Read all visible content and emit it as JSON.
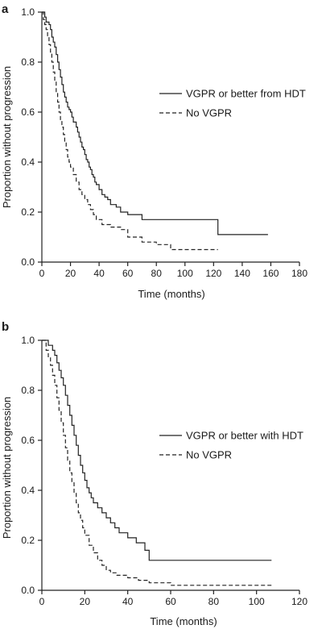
{
  "chart_data": [
    {
      "type": "line",
      "panel_label": "a",
      "xlabel": "Time (months)",
      "ylabel": "Proportion without progression",
      "xlim": [
        0,
        180
      ],
      "ylim": [
        0,
        1.0
      ],
      "xticks": [
        "0",
        "20",
        "40",
        "60",
        "80",
        "100",
        "120",
        "140",
        "160",
        "180"
      ],
      "yticks": [
        "0.0",
        "0.2",
        "0.4",
        "0.6",
        "0.8",
        "1.0"
      ],
      "legend_position": "center-right",
      "series": [
        {
          "name": "VGPR or better from HDT",
          "dash": "solid",
          "x": [
            0,
            2,
            3,
            5,
            6,
            7,
            8,
            9,
            10,
            11,
            12,
            13,
            14,
            15,
            16,
            17,
            18,
            19,
            20,
            21,
            22,
            24,
            25,
            26,
            27,
            28,
            29,
            30,
            31,
            32,
            33,
            34,
            35,
            36,
            37,
            38,
            40,
            42,
            44,
            46,
            48,
            52,
            55,
            60,
            70,
            123,
            158
          ],
          "y": [
            1.0,
            0.98,
            0.96,
            0.95,
            0.93,
            0.9,
            0.88,
            0.86,
            0.83,
            0.8,
            0.77,
            0.74,
            0.71,
            0.68,
            0.66,
            0.64,
            0.62,
            0.61,
            0.6,
            0.58,
            0.56,
            0.54,
            0.52,
            0.5,
            0.48,
            0.46,
            0.45,
            0.43,
            0.41,
            0.4,
            0.38,
            0.37,
            0.35,
            0.34,
            0.32,
            0.31,
            0.29,
            0.27,
            0.26,
            0.25,
            0.23,
            0.22,
            0.2,
            0.19,
            0.17,
            0.11,
            0.11
          ]
        },
        {
          "name": "No VGPR",
          "dash": "dashed",
          "x": [
            0,
            1,
            2,
            3,
            4,
            5,
            6,
            7,
            8,
            9,
            10,
            11,
            12,
            13,
            14,
            15,
            16,
            17,
            18,
            19,
            20,
            22,
            24,
            26,
            28,
            30,
            32,
            34,
            36,
            38,
            42,
            48,
            55,
            60,
            70,
            80,
            90,
            123
          ],
          "y": [
            1.0,
            0.97,
            0.95,
            0.93,
            0.9,
            0.87,
            0.84,
            0.8,
            0.76,
            0.72,
            0.68,
            0.64,
            0.6,
            0.57,
            0.54,
            0.51,
            0.48,
            0.45,
            0.42,
            0.4,
            0.38,
            0.35,
            0.32,
            0.29,
            0.27,
            0.25,
            0.23,
            0.21,
            0.19,
            0.17,
            0.15,
            0.14,
            0.13,
            0.1,
            0.08,
            0.07,
            0.05,
            0.05
          ]
        }
      ]
    },
    {
      "type": "line",
      "panel_label": "b",
      "xlabel": "Time (months)",
      "ylabel": "Proportion without progression",
      "xlim": [
        0,
        120
      ],
      "ylim": [
        0,
        1.0
      ],
      "xticks": [
        "0",
        "20",
        "40",
        "60",
        "80",
        "100",
        "120"
      ],
      "yticks": [
        "0.0",
        "0.2",
        "0.4",
        "0.6",
        "0.8",
        "1.0"
      ],
      "legend_position": "center-right",
      "series": [
        {
          "name": "VGPR or better with HDT",
          "dash": "solid",
          "x": [
            0,
            3,
            5,
            6,
            7,
            8,
            9,
            10,
            11,
            12,
            13,
            14,
            15,
            16,
            17,
            18,
            19,
            20,
            21,
            22,
            23,
            24,
            26,
            28,
            30,
            32,
            34,
            36,
            40,
            44,
            48,
            50,
            107
          ],
          "y": [
            1.0,
            0.98,
            0.96,
            0.94,
            0.91,
            0.88,
            0.85,
            0.82,
            0.78,
            0.74,
            0.7,
            0.66,
            0.62,
            0.58,
            0.54,
            0.5,
            0.47,
            0.44,
            0.41,
            0.39,
            0.37,
            0.35,
            0.33,
            0.31,
            0.29,
            0.27,
            0.25,
            0.23,
            0.21,
            0.19,
            0.16,
            0.12,
            0.12
          ]
        },
        {
          "name": "No VGPR",
          "dash": "dashed",
          "x": [
            0,
            2,
            3,
            4,
            5,
            6,
            7,
            8,
            9,
            10,
            11,
            12,
            13,
            14,
            15,
            16,
            17,
            18,
            19,
            20,
            22,
            24,
            26,
            28,
            30,
            32,
            35,
            40,
            45,
            50,
            60,
            107
          ],
          "y": [
            1.0,
            0.96,
            0.93,
            0.9,
            0.86,
            0.82,
            0.77,
            0.72,
            0.67,
            0.62,
            0.57,
            0.52,
            0.47,
            0.43,
            0.39,
            0.35,
            0.31,
            0.28,
            0.25,
            0.22,
            0.18,
            0.15,
            0.12,
            0.1,
            0.08,
            0.07,
            0.06,
            0.05,
            0.04,
            0.03,
            0.02,
            0.02
          ]
        }
      ]
    }
  ]
}
